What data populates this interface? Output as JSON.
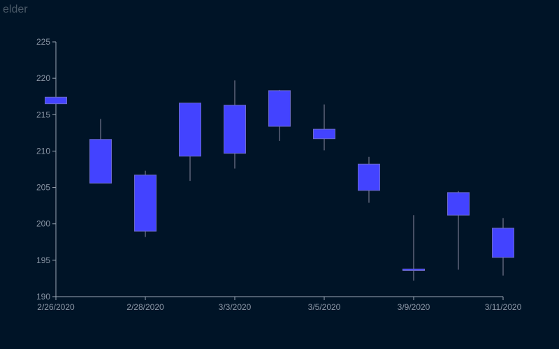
{
  "title": "elder",
  "colors": {
    "background": "#001427",
    "candle_fill": "#4343ff",
    "candle_stroke": "#6a6acc",
    "wick": "#8a8aa0",
    "axis": "#9aa6b4",
    "tick_text": "#8a97a6",
    "title_text": "#4a5a68"
  },
  "chart_data": {
    "type": "candlestick",
    "title": "elder",
    "xlabel": "",
    "ylabel": "",
    "ylim": [
      190,
      225
    ],
    "y_ticks": [
      190,
      195,
      200,
      205,
      210,
      215,
      220,
      225
    ],
    "x_tick_labels": [
      {
        "date": "2020-02-26",
        "label": "2/26/2020"
      },
      {
        "date": "2020-02-28",
        "label": "2/28/2020"
      },
      {
        "date": "2020-03-03",
        "label": "3/3/2020"
      },
      {
        "date": "2020-03-05",
        "label": "3/5/2020"
      },
      {
        "date": "2020-03-09",
        "label": "3/9/2020"
      },
      {
        "date": "2020-03-11",
        "label": "3/11/2020"
      }
    ],
    "grid": false,
    "candles": [
      {
        "date": "2020-02-26",
        "open": 216.5,
        "high": 217.5,
        "low": 216.5,
        "close": 217.4
      },
      {
        "date": "2020-02-27",
        "open": 205.6,
        "high": 214.4,
        "low": 205.6,
        "close": 211.6
      },
      {
        "date": "2020-02-28",
        "open": 199.0,
        "high": 207.3,
        "low": 198.2,
        "close": 206.7
      },
      {
        "date": "2020-03-02",
        "open": 209.3,
        "high": 216.6,
        "low": 205.9,
        "close": 216.6
      },
      {
        "date": "2020-03-03",
        "open": 209.7,
        "high": 219.7,
        "low": 207.6,
        "close": 216.3
      },
      {
        "date": "2020-03-04",
        "open": 213.4,
        "high": 218.4,
        "low": 211.4,
        "close": 218.3
      },
      {
        "date": "2020-03-05",
        "open": 211.7,
        "high": 216.4,
        "low": 210.1,
        "close": 213.0
      },
      {
        "date": "2020-03-06",
        "open": 204.6,
        "high": 209.2,
        "low": 202.9,
        "close": 208.2
      },
      {
        "date": "2020-03-09",
        "open": 193.6,
        "high": 201.2,
        "low": 192.2,
        "close": 193.8
      },
      {
        "date": "2020-03-10",
        "open": 201.2,
        "high": 204.5,
        "low": 193.7,
        "close": 204.3
      },
      {
        "date": "2020-03-11",
        "open": 195.4,
        "high": 200.8,
        "low": 192.9,
        "close": 199.4
      }
    ]
  }
}
